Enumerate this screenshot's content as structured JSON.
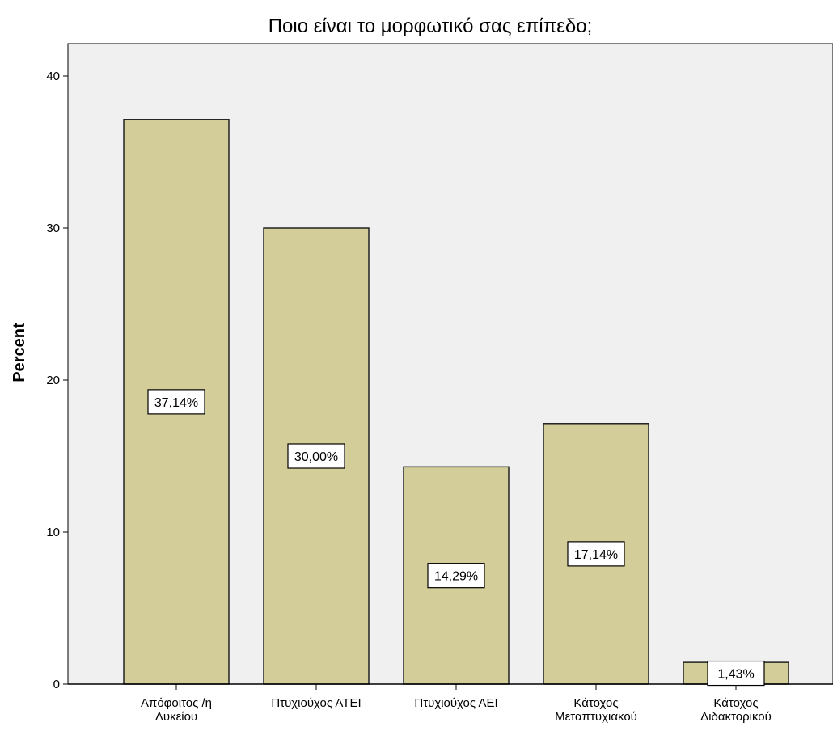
{
  "chart_data": {
    "type": "bar",
    "title": "Ποιο είναι το μορφωτικό σας επίπεδο;",
    "xlabel": "",
    "ylabel": "Percent",
    "categories": [
      [
        "Απόφοιτος /η",
        "Λυκείου"
      ],
      [
        "Πτυχιούχος ΑΤΕΙ"
      ],
      [
        "Πτυχιούχος ΑΕΙ"
      ],
      [
        "Κάτοχος",
        "Μεταπτυχιακού"
      ],
      [
        "Κάτοχος",
        "Διδακτορικού"
      ]
    ],
    "values": [
      37.14,
      30.0,
      14.29,
      17.14,
      1.43
    ],
    "data_labels": [
      "37,14%",
      "30,00%",
      "14,29%",
      "17,14%",
      "1,43%"
    ],
    "ylim": [
      0,
      42
    ],
    "yticks": [
      0,
      10,
      20,
      30,
      40
    ],
    "grid": false,
    "legend": "none",
    "colors": {
      "bar_fill": "#d3ce99",
      "bar_stroke": "#222222",
      "plot_background": "#f0f0f0",
      "axis": "#000000",
      "label_box_fill": "#ffffff"
    }
  }
}
